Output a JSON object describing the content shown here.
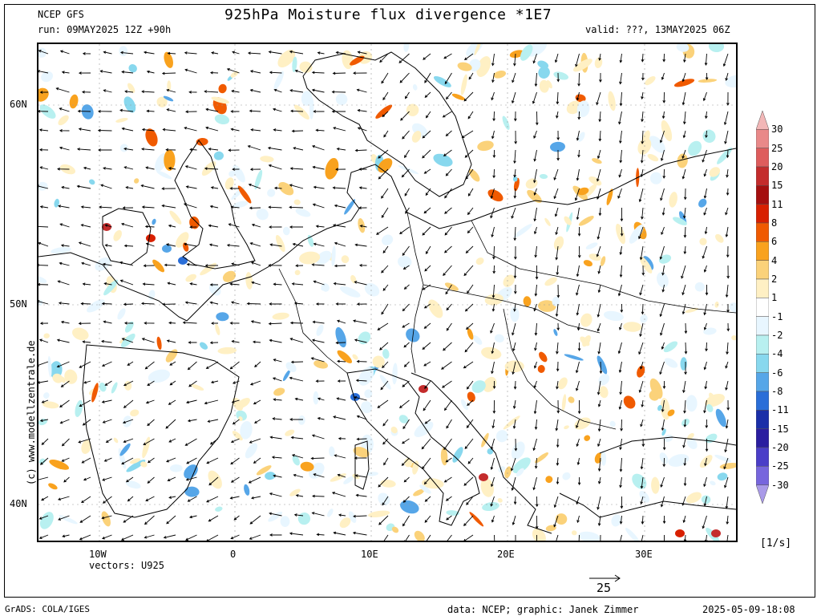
{
  "header": {
    "model": "NCEP GFS",
    "run": "run: 09MAY2025 12Z +90h",
    "title": "925hPa Moisture flux divergence *1E7",
    "valid": "valid: ???, 13MAY2025 06Z"
  },
  "watermark": "(c)  www.modellzentrale.de",
  "axes": {
    "lat_labels": [
      "60N",
      "50N",
      "40N"
    ],
    "lon_labels": [
      "10W",
      "0",
      "10E",
      "20E",
      "30E"
    ]
  },
  "vectors_label": "vectors: U925",
  "reference_vector": "25",
  "units": "[1/s]",
  "colorbar": {
    "labels": [
      "30",
      "25",
      "20",
      "15",
      "11",
      "8",
      "6",
      "4",
      "2",
      "1",
      "-1",
      "-2",
      "-4",
      "-6",
      "-8",
      "-11",
      "-15",
      "-20",
      "-25",
      "-30"
    ],
    "colors": [
      "#f2b7b7",
      "#e98989",
      "#de5c5c",
      "#c42c2c",
      "#a50f0f",
      "#d82000",
      "#f05a00",
      "#f9a21e",
      "#fbd27a",
      "#fff0c4",
      "#ffffff",
      "#e8f6ff",
      "#b8f0f0",
      "#88d8ee",
      "#56a6e8",
      "#2a6ed8",
      "#1a2fa8",
      "#2b1ea0",
      "#4b3ec8",
      "#7766dd",
      "#a99ae8"
    ]
  },
  "footer": {
    "left": "GrADS: COLA/IGES",
    "center": "data: NCEP; graphic: Janek Zimmer",
    "right": "2025-05-09-18:08"
  },
  "map_colors": {
    "divergence_pos": "#f0a030",
    "divergence_strong": "#c82010",
    "convergence": "#7ec8ee",
    "convergence_strong": "#2a6ed8",
    "coast": "#000000",
    "vector": "#000000"
  }
}
